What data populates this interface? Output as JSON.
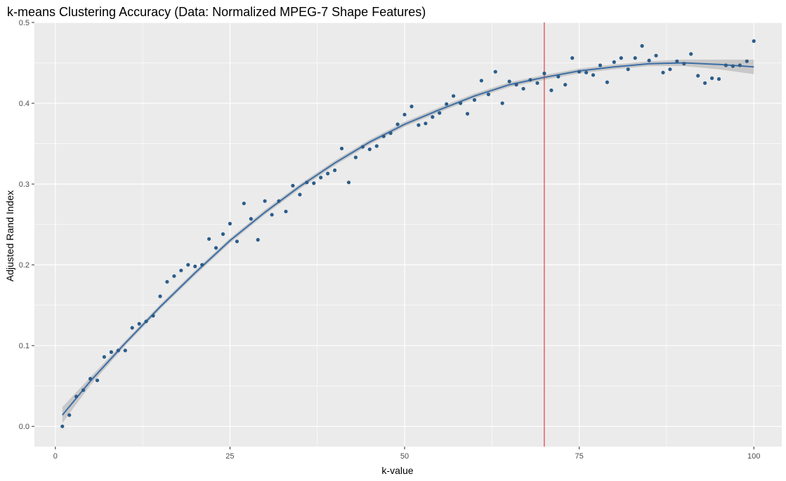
{
  "chart_data": {
    "type": "scatter",
    "title": "k-means Clustering Accuracy (Data: Normalized MPEG-7 Shape Features)",
    "xlabel": "k-value",
    "ylabel": "Adjusted Rand Index",
    "xlim": [
      -3,
      104
    ],
    "ylim": [
      -0.025,
      0.5
    ],
    "xticks": [
      0,
      25,
      50,
      75,
      100
    ],
    "xtick_labels": [
      "0",
      "25",
      "50",
      "75",
      "100"
    ],
    "yticks": [
      0.0,
      0.1,
      0.2,
      0.3,
      0.4,
      0.5
    ],
    "ytick_labels": [
      "0.0",
      "0.1",
      "0.2",
      "0.3",
      "0.4",
      "0.5"
    ],
    "grid": true,
    "vline": {
      "x": 70,
      "color": "#e41a1c"
    },
    "colors": {
      "points": "#2c5d8a",
      "smooth": "#3c6ea6",
      "ribbon": "#c2c2c2",
      "panel": "#ebebeb",
      "grid": "#ffffff"
    },
    "series": [
      {
        "x": [
          1,
          2,
          3,
          4,
          5,
          6,
          7,
          8,
          9,
          10,
          11,
          12,
          13,
          14,
          15,
          16,
          17,
          18,
          19,
          20,
          21,
          22,
          23,
          24,
          25,
          26,
          27,
          28,
          29,
          30,
          31,
          32,
          33,
          34,
          35,
          36,
          37,
          38,
          39,
          40,
          41,
          42,
          43,
          44,
          45,
          46,
          47,
          48,
          49,
          50,
          51,
          52,
          53,
          54,
          55,
          56,
          57,
          58,
          59,
          60,
          61,
          62,
          63,
          64,
          65,
          66,
          67,
          68,
          69,
          70,
          71,
          72,
          73,
          74,
          75,
          76,
          77,
          78,
          79,
          80,
          81,
          82,
          83,
          84,
          85,
          86,
          87,
          88,
          89,
          90,
          91,
          92,
          93,
          94,
          95,
          96,
          97,
          98,
          99,
          100
        ],
        "values": [
          0.0,
          0.014,
          0.037,
          0.045,
          0.059,
          0.057,
          0.086,
          0.092,
          0.094,
          0.094,
          0.122,
          0.127,
          0.13,
          0.137,
          0.161,
          0.179,
          0.186,
          0.193,
          0.2,
          0.198,
          0.2,
          0.232,
          0.221,
          0.238,
          0.251,
          0.229,
          0.276,
          0.257,
          0.231,
          0.279,
          0.262,
          0.279,
          0.266,
          0.298,
          0.287,
          0.302,
          0.301,
          0.308,
          0.313,
          0.317,
          0.344,
          0.302,
          0.333,
          0.346,
          0.343,
          0.347,
          0.359,
          0.363,
          0.374,
          0.386,
          0.396,
          0.373,
          0.375,
          0.383,
          0.388,
          0.399,
          0.409,
          0.4,
          0.387,
          0.404,
          0.428,
          0.411,
          0.439,
          0.4,
          0.427,
          0.423,
          0.418,
          0.429,
          0.425,
          0.437,
          0.416,
          0.433,
          0.423,
          0.456,
          0.439,
          0.438,
          0.435,
          0.447,
          0.426,
          0.451,
          0.456,
          0.442,
          0.456,
          0.471,
          0.453,
          0.459,
          0.438,
          0.442,
          0.452,
          0.449,
          0.461,
          0.434,
          0.425,
          0.431,
          0.43,
          0.447,
          0.446,
          0.447,
          0.452,
          0.477
        ]
      }
    ],
    "smooth": {
      "x": [
        1,
        5,
        10,
        15,
        20,
        25,
        30,
        35,
        40,
        45,
        50,
        55,
        60,
        65,
        70,
        75,
        80,
        85,
        90,
        95,
        100
      ],
      "values": [
        0.014,
        0.056,
        0.103,
        0.148,
        0.19,
        0.23,
        0.265,
        0.297,
        0.326,
        0.352,
        0.374,
        0.392,
        0.409,
        0.423,
        0.432,
        0.44,
        0.445,
        0.449,
        0.45,
        0.448,
        0.445
      ],
      "ribbon": [
        0.01,
        0.005,
        0.003,
        0.003,
        0.003,
        0.003,
        0.003,
        0.003,
        0.003,
        0.003,
        0.003,
        0.003,
        0.003,
        0.003,
        0.003,
        0.003,
        0.003,
        0.003,
        0.004,
        0.006,
        0.009
      ]
    }
  }
}
